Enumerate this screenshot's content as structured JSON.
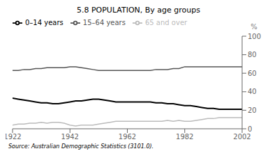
{
  "chart_data": {
    "type": "line",
    "title": "5.8   POPULATION, By age groups",
    "ylabel": "%",
    "source": "Source: Australian Demographic Statistics (3101.0).",
    "x": [
      1922,
      1924,
      1926,
      1928,
      1930,
      1932,
      1934,
      1936,
      1938,
      1940,
      1942,
      1944,
      1946,
      1948,
      1950,
      1952,
      1954,
      1956,
      1958,
      1960,
      1962,
      1964,
      1966,
      1968,
      1970,
      1972,
      1974,
      1976,
      1978,
      1980,
      1982,
      1984,
      1986,
      1988,
      1990,
      1992,
      1994,
      1996,
      1998,
      2000,
      2002
    ],
    "series": [
      {
        "name": "0–14 years",
        "color": "#000000",
        "values": [
          33,
          32,
          31,
          30,
          29,
          28,
          28,
          27,
          27,
          28,
          29,
          30,
          30,
          31,
          32,
          32,
          31,
          30,
          29,
          29,
          29,
          29,
          29,
          29,
          29,
          28,
          28,
          27,
          27,
          26,
          25,
          25,
          24,
          23,
          22,
          22,
          21,
          21,
          21,
          21,
          21
        ]
      },
      {
        "name": "15–64 years",
        "color": "#555555",
        "values": [
          63,
          63,
          64,
          64,
          65,
          65,
          66,
          66,
          66,
          66,
          67,
          67,
          66,
          65,
          64,
          63,
          63,
          63,
          63,
          63,
          63,
          63,
          63,
          63,
          63,
          64,
          64,
          64,
          65,
          65,
          67,
          67,
          67,
          67,
          67,
          67,
          67,
          67,
          67,
          67,
          67
        ]
      },
      {
        "name": "65 and over",
        "color": "#bbbbbb",
        "values": [
          4,
          5,
          5,
          6,
          6,
          7,
          6,
          7,
          7,
          6,
          4,
          3,
          4,
          4,
          4,
          5,
          6,
          7,
          8,
          8,
          8,
          8,
          8,
          8,
          8,
          8,
          8,
          9,
          8,
          9,
          8,
          8,
          9,
          10,
          11,
          11,
          12,
          12,
          12,
          12,
          12
        ]
      }
    ],
    "xlim": [
      1922,
      2002
    ],
    "xticks": [
      1922,
      1942,
      1962,
      1982,
      2002
    ],
    "ylim": [
      0,
      100
    ],
    "yticks": [
      0,
      20,
      40,
      60,
      80,
      100
    ],
    "grid": false,
    "legend": "top"
  }
}
